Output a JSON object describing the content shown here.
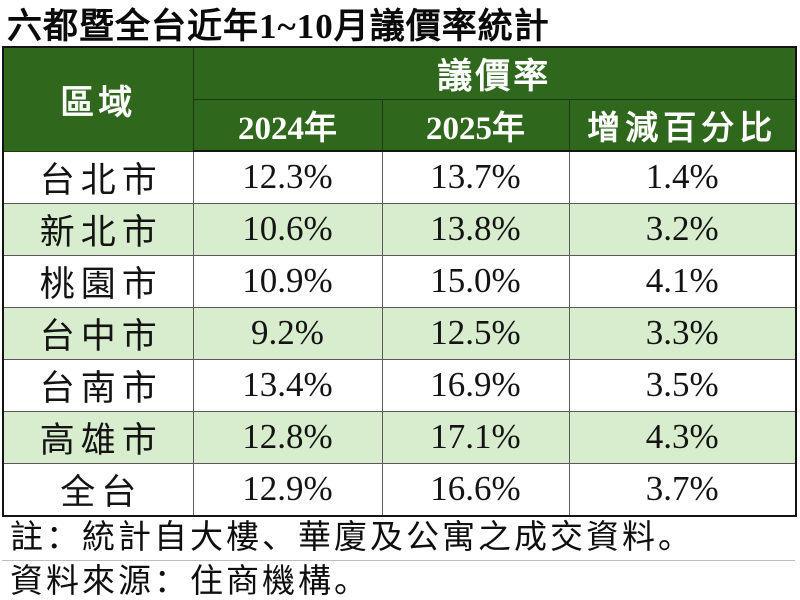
{
  "title": "六都暨全台近年1~10月議價率統計",
  "colors": {
    "header_bg": "#2f671c",
    "header_text": "#ffffff",
    "stripe_bg": "#d8edcd",
    "grid_line": "#5a5a5a",
    "outer_border": "#141414"
  },
  "table": {
    "region_header": "區域",
    "group_header": "議價率",
    "col_headers": [
      "2024年",
      "2025年",
      "增減百分比"
    ],
    "rows": [
      {
        "region": "台北市",
        "y2024": "12.3%",
        "y2025": "13.7%",
        "diff": "1.4%"
      },
      {
        "region": "新北市",
        "y2024": "10.6%",
        "y2025": "13.8%",
        "diff": "3.2%"
      },
      {
        "region": "桃園市",
        "y2024": "10.9%",
        "y2025": "15.0%",
        "diff": "4.1%"
      },
      {
        "region": "台中市",
        "y2024": "9.2%",
        "y2025": "12.5%",
        "diff": "3.3%"
      },
      {
        "region": "台南市",
        "y2024": "13.4%",
        "y2025": "16.9%",
        "diff": "3.5%"
      },
      {
        "region": "高雄市",
        "y2024": "12.8%",
        "y2025": "17.1%",
        "diff": "4.3%"
      },
      {
        "region": "全台",
        "y2024": "12.9%",
        "y2025": "16.6%",
        "diff": "3.7%"
      }
    ]
  },
  "notes": {
    "note": "註：統計自大樓、華廈及公寓之成交資料。",
    "source": "資料來源：住商機構。"
  },
  "chart_data": {
    "type": "table",
    "title": "六都暨全台近年1~10月議價率統計",
    "group_header": "議價率",
    "unit": "%",
    "columns": [
      "區域",
      "2024年",
      "2025年",
      "增減百分比"
    ],
    "rows": [
      [
        "台北市",
        12.3,
        13.7,
        1.4
      ],
      [
        "新北市",
        10.6,
        13.8,
        3.2
      ],
      [
        "桃園市",
        10.9,
        15.0,
        4.1
      ],
      [
        "台中市",
        9.2,
        12.5,
        3.3
      ],
      [
        "台南市",
        13.4,
        16.9,
        3.5
      ],
      [
        "高雄市",
        12.8,
        17.1,
        4.3
      ],
      [
        "全台",
        12.9,
        16.6,
        3.7
      ]
    ],
    "notes": [
      "註：統計自大樓、華廈及公寓之成交資料。",
      "資料來源：住商機構。"
    ],
    "layout": {
      "striped_rows": true,
      "stripe_on": "even data rows (2nd, 4th, 6th)",
      "header_rows": 2
    }
  }
}
